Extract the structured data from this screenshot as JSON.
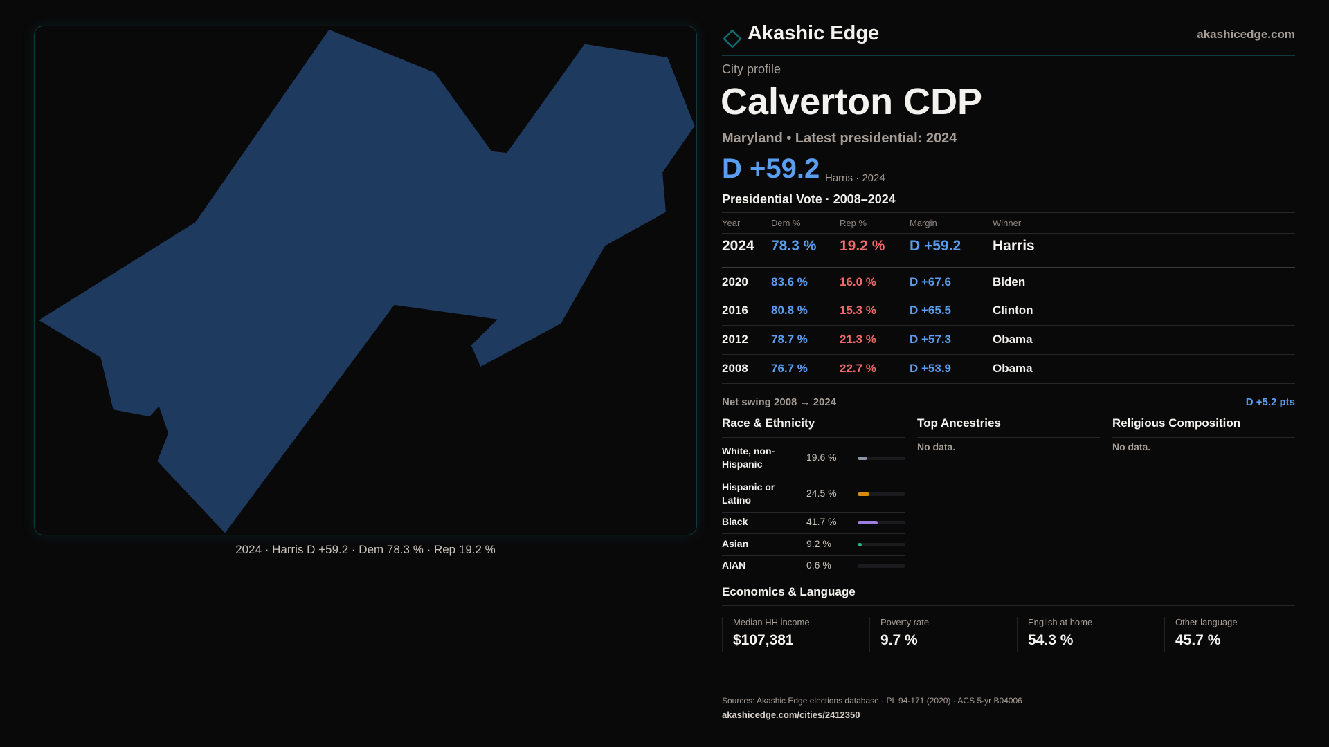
{
  "map": {
    "fill": "#1e3a5f",
    "caption": "2024 · Harris D +59.2 · Dem 78.3 % · Rep 19.2 %"
  },
  "header": {
    "brand": "Akashic Edge",
    "site": "akashicedge.com",
    "logo_icon": "diamond-icon"
  },
  "profile": {
    "kicker": "City profile",
    "title": "Calverton CDP",
    "subtitle": "Maryland • Latest presidential: 2024",
    "margin": "D +59.2",
    "margin_note": "Harris · 2024"
  },
  "votes": {
    "title": "Presidential Vote · 2008–2024",
    "headers": [
      "Year",
      "Dem %",
      "Rep %",
      "Margin",
      "Winner"
    ],
    "rows": [
      {
        "year": "2024",
        "dem": "78.3 %",
        "rep": "19.2 %",
        "margin": "D +59.2",
        "winner": "Harris"
      },
      {
        "year": "2020",
        "dem": "83.6 %",
        "rep": "16.0 %",
        "margin": "D +67.6",
        "winner": "Biden"
      },
      {
        "year": "2016",
        "dem": "80.8 %",
        "rep": "15.3 %",
        "margin": "D +65.5",
        "winner": "Clinton"
      },
      {
        "year": "2012",
        "dem": "78.7 %",
        "rep": "21.3 %",
        "margin": "D +57.3",
        "winner": "Obama"
      },
      {
        "year": "2008",
        "dem": "76.7 %",
        "rep": "22.7 %",
        "margin": "D +53.9",
        "winner": "Obama"
      }
    ],
    "swing_label": "Net swing 2008 → 2024",
    "swing_value": "D +5.2 pts"
  },
  "race": {
    "title": "Race & Ethnicity",
    "items": [
      {
        "label": "White, non-Hispanic",
        "value": "19.6 %",
        "pct": 19.6,
        "color": "#8a94a6"
      },
      {
        "label": "Hispanic or Latino",
        "value": "24.5 %",
        "pct": 24.5,
        "color": "#d98b0f"
      },
      {
        "label": "Black",
        "value": "41.7 %",
        "pct": 41.7,
        "color": "#9b7fe0"
      },
      {
        "label": "Asian",
        "value": "9.2 %",
        "pct": 9.2,
        "color": "#1fb57d"
      },
      {
        "label": "AIAN",
        "value": "0.6 %",
        "pct": 0.6,
        "color": "#d9661f"
      }
    ]
  },
  "ancestries": {
    "title": "Top Ancestries",
    "empty": "No data."
  },
  "religion": {
    "title": "Religious Composition",
    "empty": "No data."
  },
  "economics": {
    "title": "Economics & Language",
    "stats": [
      {
        "label": "Median HH income",
        "value": "$107,381"
      },
      {
        "label": "Poverty rate",
        "value": "9.7 %"
      },
      {
        "label": "English at home",
        "value": "54.3 %"
      },
      {
        "label": "Other language",
        "value": "45.7 %"
      }
    ]
  },
  "footer": {
    "sources": "Sources: Akashic Edge elections database · PL 94-171 (2020) · ACS 5-yr B04006",
    "url": "akashicedge.com/cities/2412350"
  }
}
